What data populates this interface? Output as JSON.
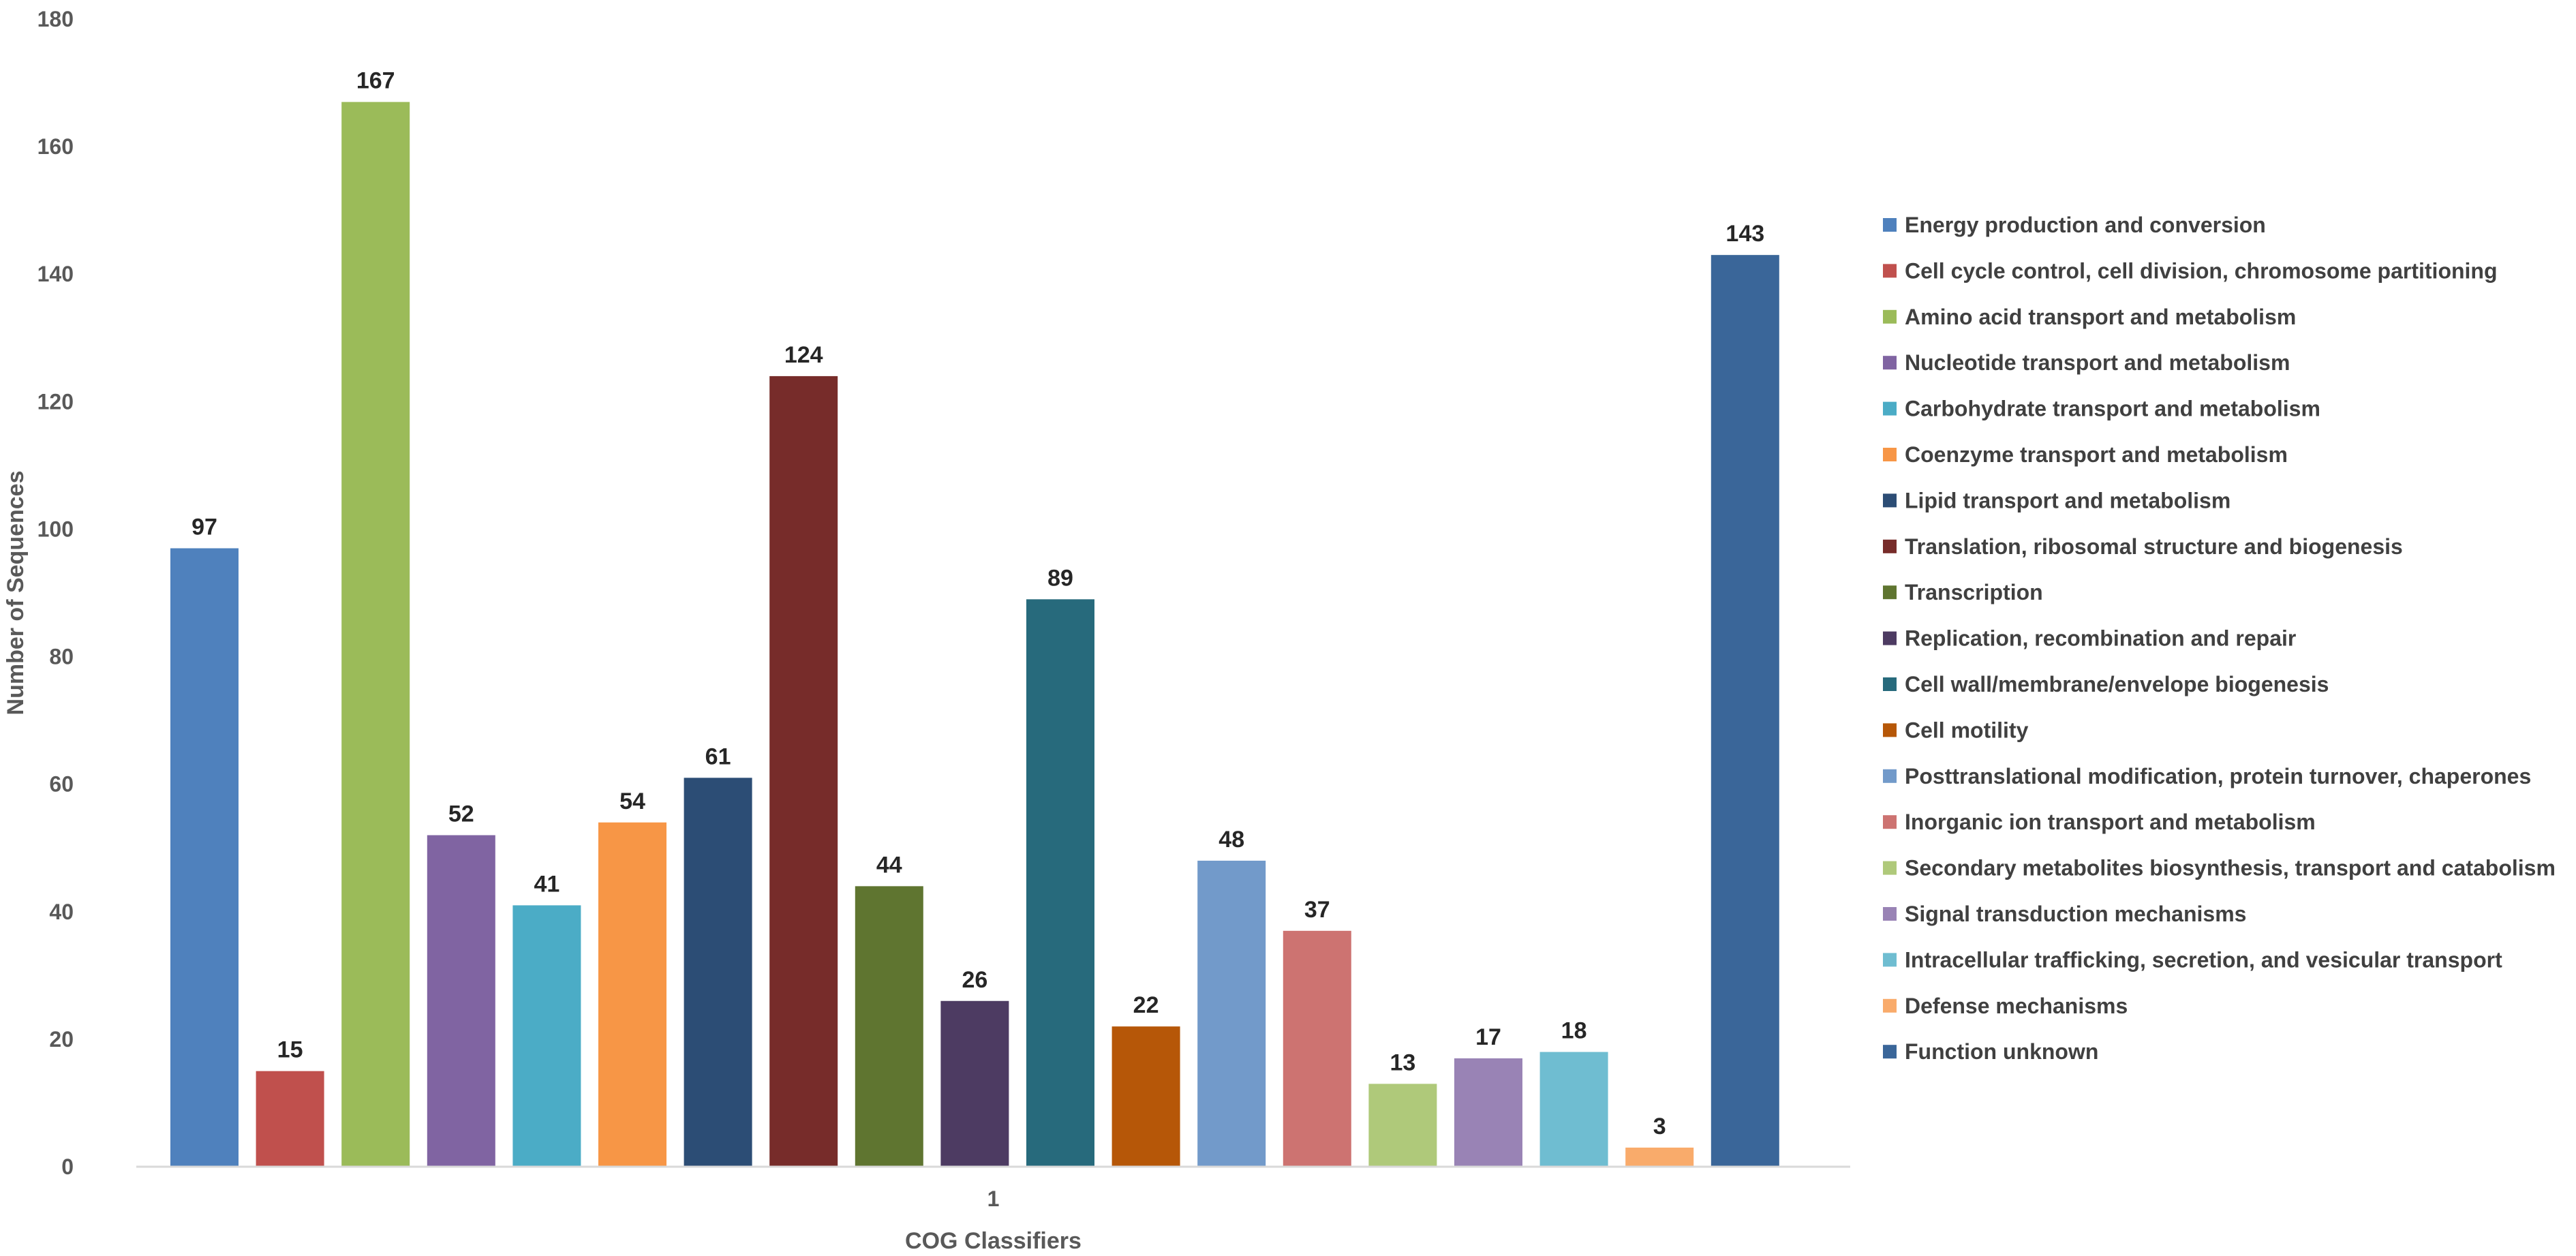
{
  "chart_data": {
    "type": "bar",
    "title": "",
    "xlabel": "COG Classifiers",
    "ylabel": "Number of Sequences",
    "categories": [
      "1"
    ],
    "ylim": [
      0,
      180
    ],
    "yticks": [
      0,
      20,
      40,
      60,
      80,
      100,
      120,
      140,
      160,
      180
    ],
    "grid": false,
    "legend_position": "right",
    "data_labels": true,
    "series": [
      {
        "name": "Energy production and conversion",
        "values": [
          97
        ],
        "color": "#4F81BD"
      },
      {
        "name": "Cell cycle control, cell division, chromosome partitioning",
        "values": [
          15
        ],
        "color": "#C0504D"
      },
      {
        "name": "Amino acid transport and metabolism",
        "values": [
          167
        ],
        "color": "#9BBB59"
      },
      {
        "name": "Nucleotide transport and metabolism",
        "values": [
          52
        ],
        "color": "#8064A2"
      },
      {
        "name": "Carbohydrate transport and metabolism",
        "values": [
          41
        ],
        "color": "#4BACC6"
      },
      {
        "name": "Coenzyme transport and metabolism",
        "values": [
          54
        ],
        "color": "#F79646"
      },
      {
        "name": "Lipid transport and metabolism",
        "values": [
          61
        ],
        "color": "#2C4D75"
      },
      {
        "name": "Translation, ribosomal structure and biogenesis",
        "values": [
          124
        ],
        "color": "#772C2A"
      },
      {
        "name": "Transcription",
        "values": [
          44
        ],
        "color": "#5F7530"
      },
      {
        "name": "Replication, recombination and repair",
        "values": [
          26
        ],
        "color": "#4D3B62"
      },
      {
        "name": "Cell wall/membrane/envelope biogenesis",
        "values": [
          89
        ],
        "color": "#276A7C"
      },
      {
        "name": "Cell motility",
        "values": [
          22
        ],
        "color": "#B65708"
      },
      {
        "name": "Posttranslational modification, protein turnover, chaperones",
        "values": [
          48
        ],
        "color": "#729ACA"
      },
      {
        "name": "Inorganic ion transport and metabolism",
        "values": [
          37
        ],
        "color": "#CD7371"
      },
      {
        "name": "Secondary metabolites biosynthesis, transport and catabolism",
        "values": [
          13
        ],
        "color": "#AFC97A"
      },
      {
        "name": "Signal transduction mechanisms",
        "values": [
          17
        ],
        "color": "#9983B5"
      },
      {
        "name": "Intracellular trafficking, secretion, and vesicular transport",
        "values": [
          18
        ],
        "color": "#6FBDD1"
      },
      {
        "name": "Defense mechanisms",
        "values": [
          3
        ],
        "color": "#F9AB6B"
      },
      {
        "name": "Function unknown",
        "values": [
          143
        ],
        "color": "#3A6699"
      }
    ]
  }
}
